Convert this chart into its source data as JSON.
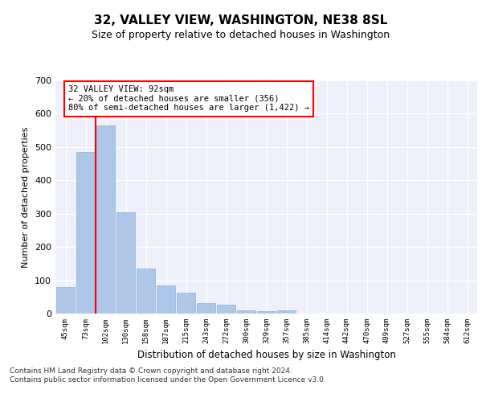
{
  "title": "32, VALLEY VIEW, WASHINGTON, NE38 8SL",
  "subtitle": "Size of property relative to detached houses in Washington",
  "xlabel": "Distribution of detached houses by size in Washington",
  "ylabel": "Number of detached properties",
  "bar_color": "#aec6e8",
  "bar_edge_color": "#8ab4d8",
  "categories": [
    "45sqm",
    "73sqm",
    "102sqm",
    "130sqm",
    "158sqm",
    "187sqm",
    "215sqm",
    "243sqm",
    "272sqm",
    "300sqm",
    "329sqm",
    "357sqm",
    "385sqm",
    "414sqm",
    "442sqm",
    "470sqm",
    "499sqm",
    "527sqm",
    "555sqm",
    "584sqm",
    "612sqm"
  ],
  "values": [
    80,
    485,
    565,
    305,
    135,
    85,
    63,
    32,
    27,
    10,
    8,
    10,
    0,
    0,
    0,
    0,
    0,
    0,
    0,
    0,
    0
  ],
  "ylim": [
    0,
    700
  ],
  "yticks": [
    0,
    100,
    200,
    300,
    400,
    500,
    600,
    700
  ],
  "annotation_box_text": "32 VALLEY VIEW: 92sqm\n← 20% of detached houses are smaller (356)\n80% of semi-detached houses are larger (1,422) →",
  "vline_x": 1.5,
  "bg_color": "#eef1fb",
  "grid_color": "#ffffff",
  "footer": "Contains HM Land Registry data © Crown copyright and database right 2024.\nContains public sector information licensed under the Open Government Licence v3.0."
}
